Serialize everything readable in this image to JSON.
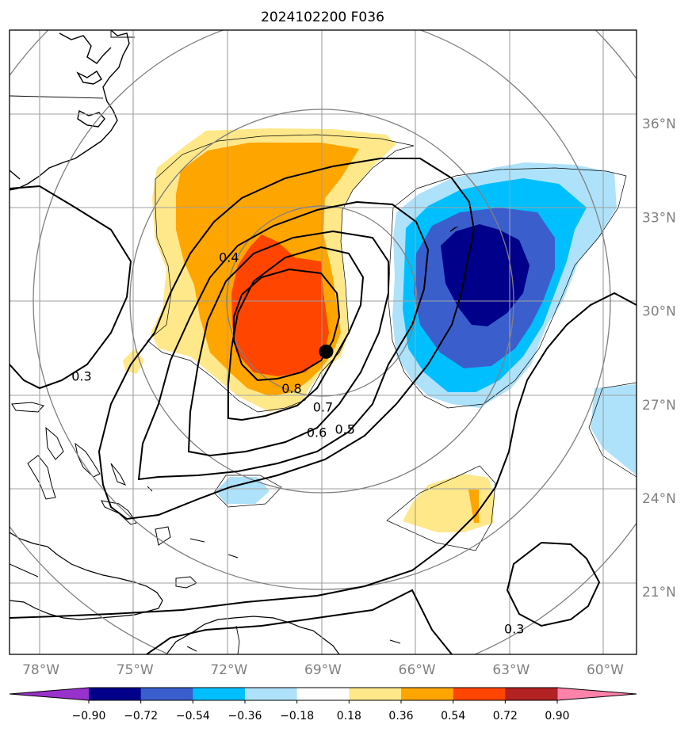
{
  "chart_data": {
    "type": "heatmap",
    "title": "2024102200 F036",
    "lon_ticks": [
      -78,
      -75,
      -72,
      -69,
      -66,
      -63,
      -60
    ],
    "lon_tick_labels": [
      "78°W",
      "75°W",
      "72°W",
      "69°W",
      "66°W",
      "63°W",
      "60°W"
    ],
    "lat_ticks": [
      21,
      24,
      27,
      30,
      33,
      36
    ],
    "lat_tick_labels": [
      "21°N",
      "24°N",
      "27°N",
      "30°N",
      "33°N",
      "36°N"
    ],
    "xlim": [
      -79,
      -59
    ],
    "ylim": [
      19,
      39
    ],
    "grid": true,
    "center_marker": {
      "lon": -68.9,
      "lat": 28.7
    },
    "shaded_field": {
      "levels": [
        -0.9,
        -0.72,
        -0.54,
        -0.36,
        -0.18,
        0.18,
        0.36,
        0.54,
        0.72,
        0.9
      ],
      "level_labels": [
        "−0.90",
        "−0.72",
        "−0.54",
        "−0.36",
        "−0.18",
        "0.18",
        "0.36",
        "0.54",
        "0.72",
        "0.90"
      ],
      "colors": [
        "#9932cc",
        "#00008b",
        "#3a5fcd",
        "#00bfff",
        "#aee2fa",
        "#ffffff",
        "#ffe88a",
        "#ffa500",
        "#ff4500",
        "#b22222",
        "#ff82ab"
      ],
      "extend": "both",
      "regions": [
        {
          "sign": "positive",
          "max_level": 0.72,
          "center": [
            -70.5,
            29.2
          ]
        },
        {
          "sign": "negative",
          "min_level": -0.9,
          "center": [
            -63.8,
            30.6
          ]
        },
        {
          "sign": "positive",
          "max_level": 0.54,
          "center": [
            -64.5,
            23.5
          ]
        },
        {
          "sign": "negative",
          "min_level": -0.36,
          "center": [
            -59.5,
            26.0
          ]
        },
        {
          "sign": "negative",
          "min_level": -0.36,
          "center": [
            -71.0,
            24.0
          ]
        }
      ]
    },
    "contour_labels": [
      {
        "text": "0.4",
        "lon": -72.0,
        "lat": 31.7
      },
      {
        "text": "0.3",
        "lon": -76.7,
        "lat": 27.9
      },
      {
        "text": "0.8",
        "lon": -70.0,
        "lat": 27.5
      },
      {
        "text": "0.7",
        "lon": -69.0,
        "lat": 26.9
      },
      {
        "text": "0.6",
        "lon": -69.2,
        "lat": 26.1
      },
      {
        "text": "0.5",
        "lon": -68.3,
        "lat": 26.2
      },
      {
        "text": "0.3",
        "lon": -62.9,
        "lat": 19.8
      }
    ]
  }
}
